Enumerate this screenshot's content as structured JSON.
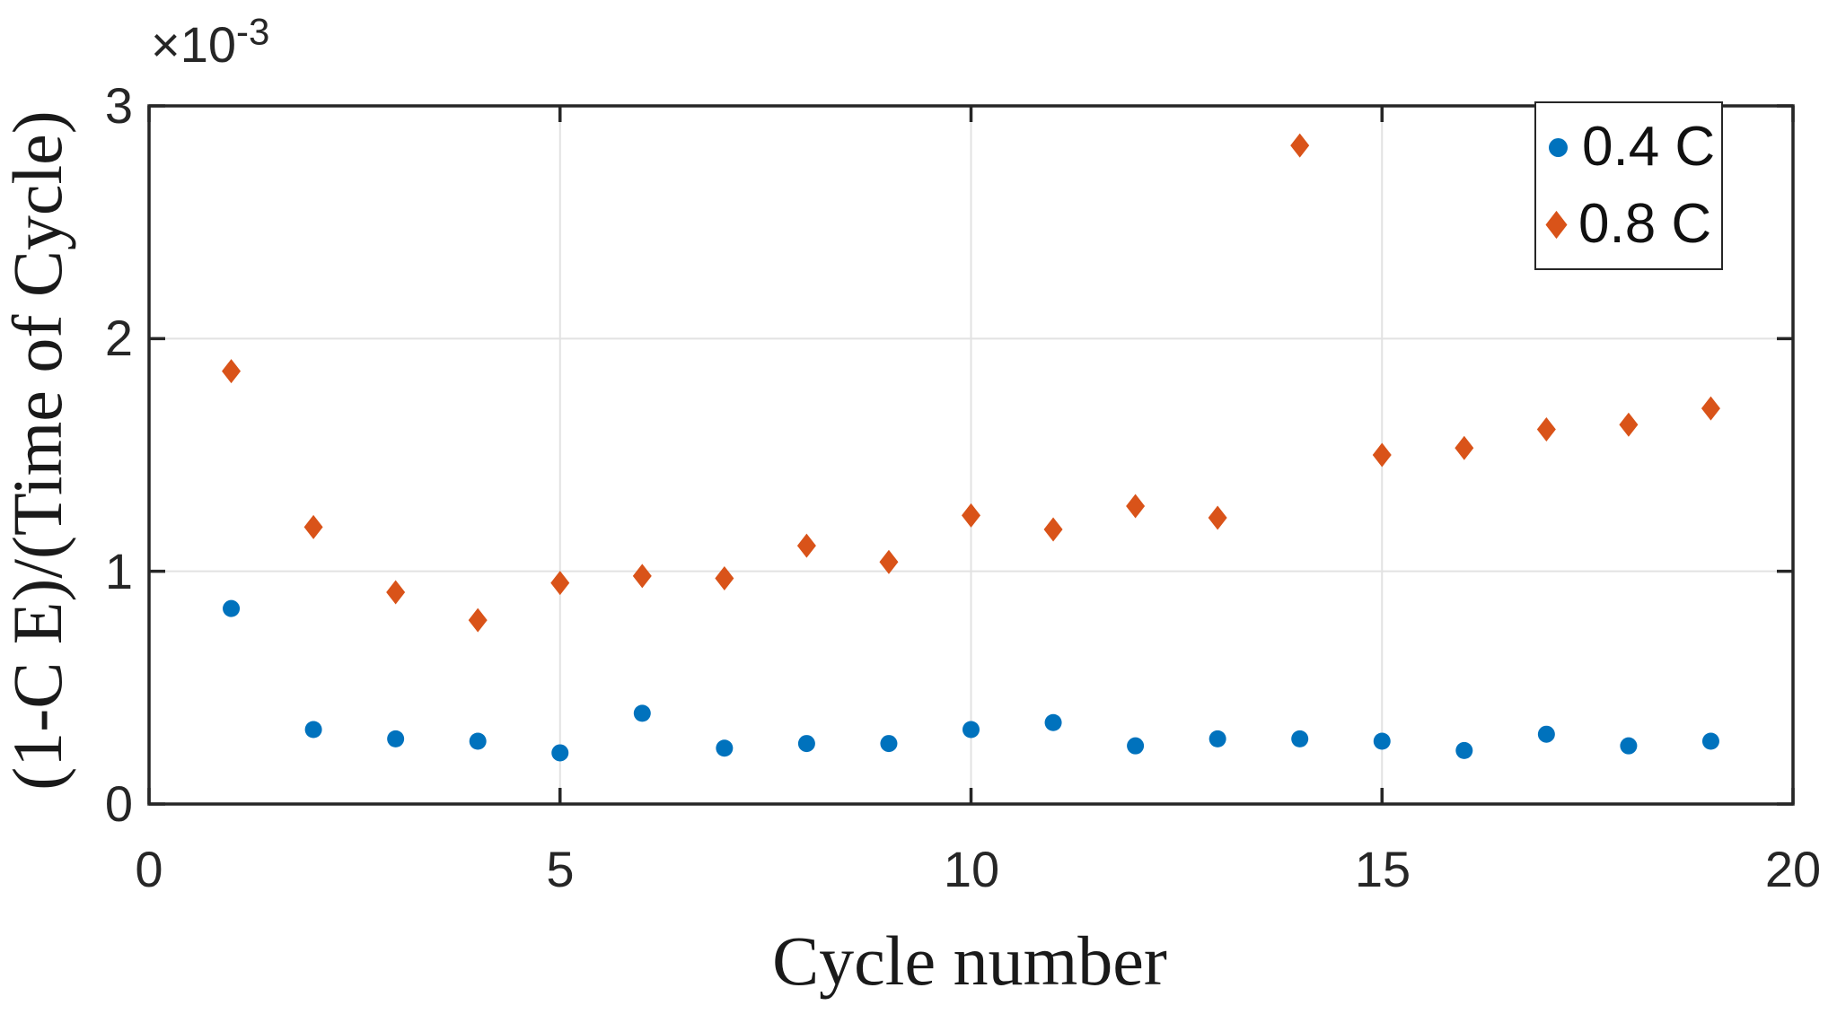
{
  "figure": {
    "background": "#ffffff",
    "axis_color": "#262626",
    "grid_color": "#e2e2e2",
    "series_colors": {
      "blue": "#0072BD",
      "orange": "#D95319"
    }
  },
  "ticks": {
    "x_labels": [
      "0",
      "5",
      "10",
      "15",
      "20"
    ],
    "y_labels": [
      "0",
      "1",
      "2",
      "3"
    ]
  },
  "chart_data": {
    "type": "scatter",
    "title": "",
    "xlabel": "Cycle number",
    "ylabel": "(1-C E)/(Time of Cycle)",
    "y_multiplier_base": "×10",
    "y_multiplier_exponent": "-3",
    "xlim": [
      0,
      20
    ],
    "ylim_e3": [
      0,
      3
    ],
    "xticks": [
      0,
      5,
      10,
      15,
      20
    ],
    "yticks_e3": [
      0,
      1,
      2,
      3
    ],
    "grid": true,
    "legend_position": "northeast",
    "x": [
      1,
      2,
      3,
      4,
      5,
      6,
      7,
      8,
      9,
      10,
      11,
      12,
      13,
      14,
      15,
      16,
      17,
      18,
      19
    ],
    "series": [
      {
        "name": "0.4 C",
        "marker": "circle",
        "color": "#0072BD",
        "values_e3": [
          0.84,
          0.32,
          0.28,
          0.27,
          0.22,
          0.39,
          0.24,
          0.26,
          0.26,
          0.32,
          0.35,
          0.25,
          0.28,
          0.28,
          0.27,
          0.23,
          0.3,
          0.25,
          0.27
        ]
      },
      {
        "name": "0.8 C",
        "marker": "diamond",
        "color": "#D95319",
        "values_e3": [
          1.86,
          1.19,
          0.91,
          0.79,
          0.95,
          0.98,
          0.97,
          1.11,
          1.04,
          1.24,
          1.18,
          1.28,
          1.23,
          2.83,
          1.5,
          1.53,
          1.61,
          1.63,
          1.7
        ]
      }
    ]
  }
}
